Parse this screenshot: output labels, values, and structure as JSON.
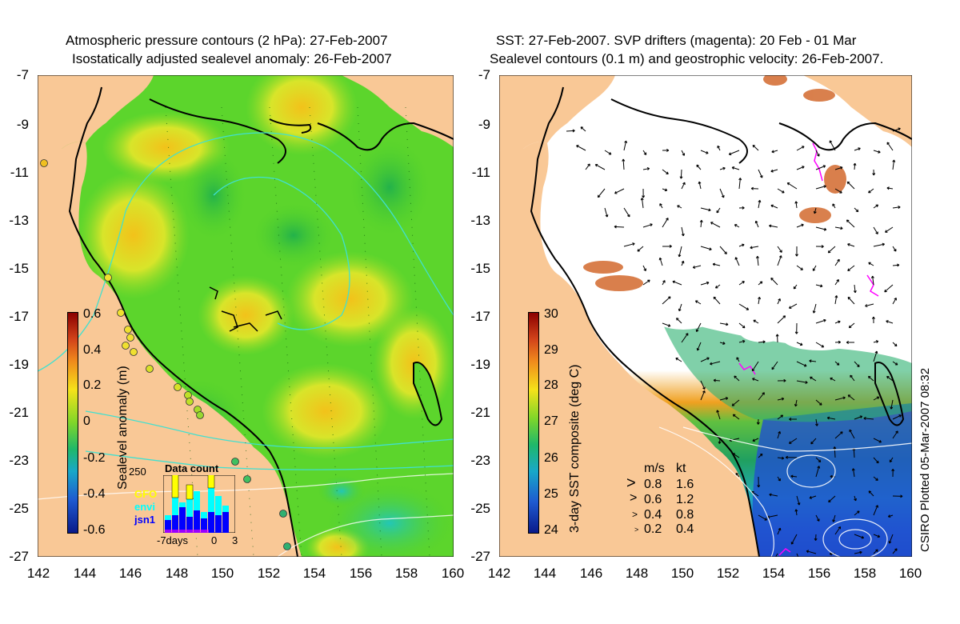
{
  "left_panel": {
    "title_line1": "Atmospheric pressure contours (2 hPa): 27-Feb-2007",
    "title_line2": "Isostatically adjusted sealevel anomaly: 26-Feb-2007",
    "y_ticks": [
      "-7",
      "-9",
      "-11",
      "-13",
      "-15",
      "-17",
      "-19",
      "-21",
      "-23",
      "-25",
      "-27"
    ],
    "x_ticks": [
      "142",
      "144",
      "146",
      "148",
      "150",
      "152",
      "154",
      "156",
      "158",
      "160"
    ],
    "colorbar": {
      "label": "Sealevel anomaly (m)",
      "ticks": [
        "0.6",
        "0.4",
        "0.2",
        "0",
        "-0.2",
        "-0.4",
        "-0.6"
      ]
    },
    "data_count": {
      "title": "Data count",
      "y_max": "250",
      "legend": [
        {
          "name": "GFO",
          "color": "#ffff00"
        },
        {
          "name": "envi",
          "color": "#00ffff"
        },
        {
          "name": "jsn1",
          "color": "#0000ff"
        }
      ],
      "x_labels": [
        "-7days",
        "0",
        "3"
      ]
    }
  },
  "right_panel": {
    "title_line1": "SST: 27-Feb-2007. SVP drifters (magenta): 20 Feb - 01 Mar",
    "title_line2": "Sealevel contours (0.1 m) and geostrophic velocity: 26-Feb-2007.",
    "y_ticks": [
      "-7",
      "-9",
      "-11",
      "-13",
      "-15",
      "-17",
      "-19",
      "-21",
      "-23",
      "-25",
      "-27"
    ],
    "x_ticks": [
      "142",
      "144",
      "146",
      "148",
      "150",
      "152",
      "154",
      "156",
      "158",
      "160"
    ],
    "colorbar": {
      "label": "3-day SST composite (deg C)",
      "ticks": [
        "30",
        "29",
        "28",
        "27",
        "26",
        "25",
        "24"
      ]
    },
    "velocity_legend": {
      "header_ms": "m/s",
      "header_kt": "kt",
      "rows": [
        {
          "ms": "0.8",
          "kt": "1.6"
        },
        {
          "ms": "0.6",
          "kt": "1.2"
        },
        {
          "ms": "0.4",
          "kt": "0.8"
        },
        {
          "ms": "0.2",
          "kt": "0.4"
        }
      ]
    },
    "credit": "CSIRO Plotted 05-Mar-2007 08:32"
  },
  "colors": {
    "land": "#f9c896",
    "sla_green": "#4fd12a",
    "cyan_contour": "#40e0d0",
    "drifter": "#ff00ff"
  }
}
